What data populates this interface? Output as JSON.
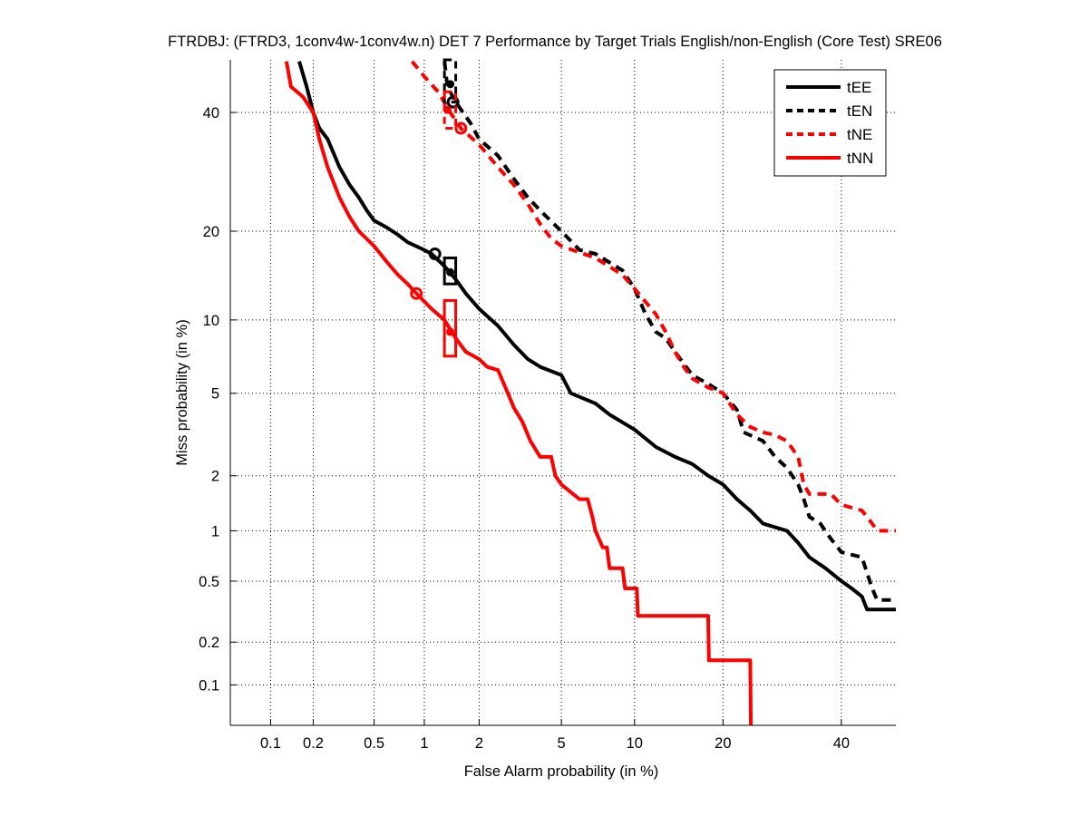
{
  "chart_data": {
    "type": "line",
    "title": "FTRDBJ: (FTRD3, 1conv4w-1conv4w.n) DET 7 Performance by Target Trials English/non-English (Core Test) SRE06",
    "xlabel": "False Alarm probability (in %)",
    "ylabel": "Miss probability (in %)",
    "xscale": "normal-deviate",
    "yscale": "normal-deviate",
    "xlim": [
      0.05,
      50.7
    ],
    "ylim": [
      0.05,
      50.3
    ],
    "xticks": [
      0.1,
      0.2,
      0.5,
      1,
      2,
      5,
      10,
      20,
      40
    ],
    "xtick_labels": [
      "0.1",
      "0.2",
      "0.5",
      "1",
      "2",
      "5",
      "10",
      "20",
      "40"
    ],
    "yticks": [
      0.1,
      0.2,
      0.5,
      1,
      2,
      5,
      10,
      20,
      40
    ],
    "ytick_labels": [
      "0.1",
      "0.2",
      "0.5",
      "1",
      "2",
      "5",
      "10",
      "20",
      "40"
    ],
    "grid": true,
    "legend_position": "top-right",
    "series": [
      {
        "name": "tEE",
        "color": "#000000",
        "style": "solid",
        "points": [
          [
            0.16,
            50
          ],
          [
            0.18,
            45
          ],
          [
            0.2,
            40
          ],
          [
            0.22,
            37
          ],
          [
            0.25,
            35
          ],
          [
            0.3,
            30
          ],
          [
            0.35,
            27
          ],
          [
            0.4,
            25
          ],
          [
            0.45,
            23
          ],
          [
            0.5,
            21.5
          ],
          [
            0.6,
            20.5
          ],
          [
            0.7,
            19.5
          ],
          [
            0.8,
            18.5
          ],
          [
            1.0,
            17.5
          ],
          [
            1.1,
            17
          ],
          [
            1.3,
            15.5
          ],
          [
            1.5,
            14
          ],
          [
            1.7,
            12.5
          ],
          [
            2.0,
            11
          ],
          [
            2.5,
            9.5
          ],
          [
            3.0,
            8.0
          ],
          [
            3.5,
            7.0
          ],
          [
            4.0,
            6.5
          ],
          [
            5.0,
            6.0
          ],
          [
            5.5,
            5.0
          ],
          [
            7.0,
            4.5
          ],
          [
            8.0,
            4.0
          ],
          [
            10,
            3.4
          ],
          [
            12,
            2.8
          ],
          [
            14,
            2.5
          ],
          [
            16,
            2.3
          ],
          [
            18,
            2.0
          ],
          [
            20,
            1.8
          ],
          [
            22,
            1.5
          ],
          [
            24,
            1.3
          ],
          [
            26,
            1.1
          ],
          [
            30,
            1.0
          ],
          [
            32,
            0.85
          ],
          [
            34,
            0.7
          ],
          [
            37,
            0.6
          ],
          [
            40,
            0.5
          ],
          [
            42,
            0.45
          ],
          [
            44,
            0.4
          ],
          [
            45,
            0.33
          ],
          [
            50.7,
            0.33
          ]
        ],
        "actual_dcf_point": [
          1.15,
          17.0
        ],
        "min_dcf_point": [
          1.4,
          14.8
        ],
        "confidence_box": {
          "x": [
            1.3,
            1.5
          ],
          "y": [
            13.5,
            16.5
          ]
        }
      },
      {
        "name": "tEN",
        "color": "#000000",
        "style": "dashed",
        "points": [
          [
            1.3,
            50
          ],
          [
            1.35,
            45
          ],
          [
            1.5,
            42
          ],
          [
            1.8,
            38
          ],
          [
            2.0,
            35
          ],
          [
            2.5,
            32
          ],
          [
            3.0,
            28
          ],
          [
            3.5,
            25
          ],
          [
            4.0,
            23
          ],
          [
            5.0,
            20
          ],
          [
            6.0,
            17.5
          ],
          [
            7.0,
            17
          ],
          [
            9.0,
            15
          ],
          [
            10,
            13
          ],
          [
            11,
            10.5
          ],
          [
            12,
            9
          ],
          [
            13,
            8.5
          ],
          [
            14,
            7.5
          ],
          [
            16,
            6.0
          ],
          [
            18,
            5.5
          ],
          [
            20,
            5.0
          ],
          [
            22,
            4.2
          ],
          [
            23,
            3.3
          ],
          [
            26,
            3.0
          ],
          [
            28,
            2.5
          ],
          [
            30,
            2.2
          ],
          [
            32,
            1.8
          ],
          [
            33,
            1.5
          ],
          [
            34,
            1.2
          ],
          [
            36,
            1.1
          ],
          [
            38,
            0.9
          ],
          [
            40,
            0.75
          ],
          [
            44,
            0.7
          ],
          [
            46,
            0.45
          ],
          [
            47,
            0.38
          ],
          [
            50.7,
            0.38
          ]
        ],
        "actual_dcf_point": [
          1.45,
          42.0
        ],
        "min_dcf_point": [
          1.4,
          45.5
        ],
        "confidence_box": {
          "x": [
            1.3,
            1.5
          ],
          "y": [
            42,
            50.3
          ]
        }
      },
      {
        "name": "tNE",
        "color": "#ff0000",
        "style": "dashed",
        "points": [
          [
            0.85,
            50
          ],
          [
            1.0,
            47
          ],
          [
            1.2,
            44
          ],
          [
            1.4,
            40
          ],
          [
            1.6,
            37
          ],
          [
            2.0,
            34
          ],
          [
            2.5,
            30
          ],
          [
            3.0,
            27
          ],
          [
            3.5,
            24
          ],
          [
            4.0,
            21
          ],
          [
            4.5,
            19
          ],
          [
            5.0,
            18
          ],
          [
            7.0,
            16.5
          ],
          [
            9.0,
            14.5
          ],
          [
            10,
            13
          ],
          [
            12,
            10.5
          ],
          [
            13,
            9
          ],
          [
            14,
            7.5
          ],
          [
            15,
            6.5
          ],
          [
            16,
            5.8
          ],
          [
            18,
            5.3
          ],
          [
            20,
            5.0
          ],
          [
            22,
            4.0
          ],
          [
            24,
            3.5
          ],
          [
            26,
            3.3
          ],
          [
            28,
            3.2
          ],
          [
            30,
            3.0
          ],
          [
            32,
            2.5
          ],
          [
            33,
            1.8
          ],
          [
            34,
            1.6
          ],
          [
            38,
            1.6
          ],
          [
            40,
            1.4
          ],
          [
            44,
            1.3
          ],
          [
            46,
            1.1
          ],
          [
            47,
            1.0
          ],
          [
            50.7,
            1.0
          ]
        ],
        "actual_dcf_point": [
          1.6,
          37.0
        ],
        "min_dcf_point": [
          1.35,
          40.5
        ],
        "confidence_box": {
          "x": [
            1.3,
            1.5
          ],
          "y": [
            37,
            44
          ]
        }
      },
      {
        "name": "tNN",
        "color": "#ff0000",
        "style": "solid",
        "points": [
          [
            0.13,
            50
          ],
          [
            0.14,
            45
          ],
          [
            0.17,
            43
          ],
          [
            0.2,
            40
          ],
          [
            0.22,
            35
          ],
          [
            0.25,
            30
          ],
          [
            0.3,
            25
          ],
          [
            0.35,
            22
          ],
          [
            0.4,
            20
          ],
          [
            0.5,
            18
          ],
          [
            0.6,
            16
          ],
          [
            0.7,
            14.5
          ],
          [
            0.8,
            13.5
          ],
          [
            0.9,
            12.5
          ],
          [
            1.1,
            11
          ],
          [
            1.3,
            10
          ],
          [
            1.5,
            8.5
          ],
          [
            1.7,
            7.5
          ],
          [
            2.0,
            7.0
          ],
          [
            2.2,
            6.5
          ],
          [
            2.5,
            6.3
          ],
          [
            2.8,
            5.0
          ],
          [
            3.0,
            4.3
          ],
          [
            3.3,
            3.7
          ],
          [
            3.6,
            3.0
          ],
          [
            4.0,
            2.5
          ],
          [
            4.5,
            2.5
          ],
          [
            4.7,
            2.0
          ],
          [
            5.0,
            1.8
          ],
          [
            6.0,
            1.5
          ],
          [
            6.5,
            1.5
          ],
          [
            6.8,
            1.2
          ],
          [
            7.0,
            1.0
          ],
          [
            7.5,
            0.8
          ],
          [
            7.8,
            0.8
          ],
          [
            8.0,
            0.6
          ],
          [
            9.0,
            0.6
          ],
          [
            9.2,
            0.45
          ],
          [
            10.2,
            0.45
          ],
          [
            10.3,
            0.3
          ],
          [
            18,
            0.3
          ],
          [
            18.1,
            0.15
          ],
          [
            24,
            0.15
          ],
          [
            24.1,
            0.05
          ]
        ],
        "actual_dcf_point": [
          0.9,
          12.5
        ],
        "min_dcf_point": [
          1.4,
          9.0
        ],
        "confidence_box": {
          "x": [
            1.3,
            1.5
          ],
          "y": [
            7.2,
            11.8
          ]
        }
      }
    ]
  }
}
